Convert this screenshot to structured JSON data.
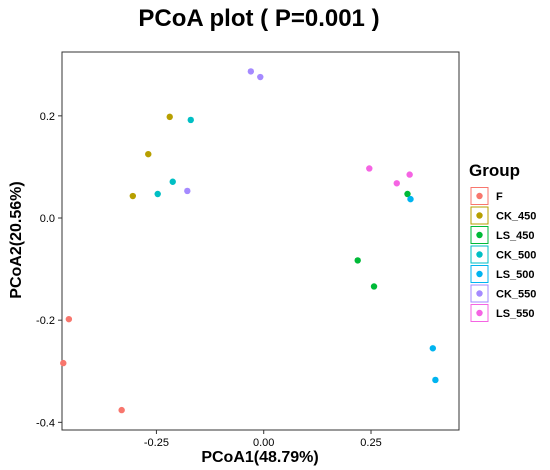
{
  "chart_data": {
    "type": "scatter",
    "title": "PCoA plot ( P=0.001 )",
    "xlabel": "PCoA1(48.79%)",
    "ylabel": "PCoA2(20.56%)",
    "xlim": [
      -0.47,
      0.455
    ],
    "ylim": [
      -0.415,
      0.325
    ],
    "x_ticks": [
      -0.25,
      0.0,
      0.25
    ],
    "x_tick_labels": [
      "-0.25",
      "0.00",
      "0.25"
    ],
    "y_ticks": [
      -0.4,
      -0.2,
      0.0,
      0.2
    ],
    "y_tick_labels": [
      "-0.4",
      "-0.2",
      "0.0",
      "0.2"
    ],
    "grid": false,
    "legend": {
      "title": "Group",
      "position": "right"
    },
    "series": [
      {
        "name": "F",
        "color": "#F8766D",
        "points": [
          [
            -0.467,
            -0.284
          ],
          [
            -0.454,
            -0.198
          ],
          [
            -0.331,
            -0.376
          ]
        ]
      },
      {
        "name": "CK_450",
        "color": "#B79F00",
        "points": [
          [
            -0.219,
            0.198
          ],
          [
            -0.269,
            0.125
          ],
          [
            -0.305,
            0.043
          ]
        ]
      },
      {
        "name": "LS_450",
        "color": "#00BA38",
        "points": [
          [
            0.219,
            -0.083
          ],
          [
            0.257,
            -0.134
          ],
          [
            0.335,
            0.047
          ]
        ]
      },
      {
        "name": "CK_500",
        "color": "#00BFC4",
        "points": [
          [
            -0.17,
            0.192
          ],
          [
            -0.212,
            0.071
          ],
          [
            -0.247,
            0.047
          ]
        ]
      },
      {
        "name": "LS_500",
        "color": "#00B4F0",
        "points": [
          [
            0.342,
            0.037
          ],
          [
            0.394,
            -0.255
          ],
          [
            0.4,
            -0.317
          ]
        ]
      },
      {
        "name": "CK_550",
        "color": "#A58AFF",
        "points": [
          [
            -0.03,
            0.287
          ],
          [
            -0.008,
            0.276
          ],
          [
            -0.178,
            0.053
          ]
        ]
      },
      {
        "name": "LS_550",
        "color": "#F564E3",
        "points": [
          [
            0.246,
            0.097
          ],
          [
            0.31,
            0.068
          ],
          [
            0.34,
            0.085
          ]
        ]
      }
    ]
  }
}
